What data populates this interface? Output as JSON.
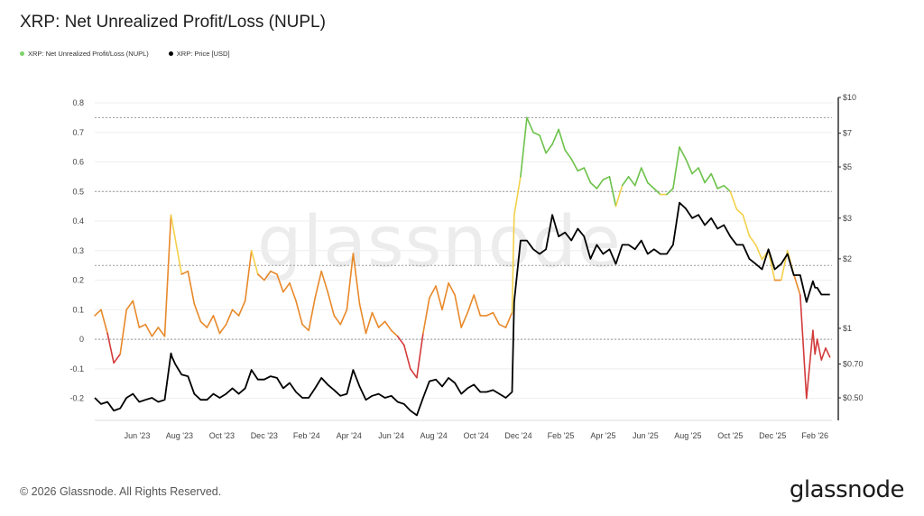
{
  "chart_data": {
    "type": "line",
    "title": "XRP: Net Unrealized Profit/Loss (NUPL)",
    "legend": [
      {
        "name": "XRP: Net Unrealized Profit/Loss (NUPL)",
        "color": "#7dd36a"
      },
      {
        "name": "XRP: Price [USD]",
        "color": "#000000"
      }
    ],
    "x_ticks": [
      "Jun '23",
      "Aug '23",
      "Oct '23",
      "Dec '23",
      "Feb '24",
      "Apr '24",
      "Jun '24",
      "Aug '24",
      "Oct '24",
      "Dec '24",
      "Feb '25",
      "Apr '25",
      "Jun '25",
      "Aug '25",
      "Oct '25",
      "Dec '25",
      "Feb '26"
    ],
    "x_tick_pos": [
      0.5,
      2.5,
      4.5,
      6.5,
      8.5,
      10.5,
      12.5,
      14.5,
      16.5,
      18.5,
      20.5,
      22.5,
      24.5,
      26.5,
      28.5,
      30.5,
      32.5
    ],
    "x_range": [
      -1.5,
      33.3
    ],
    "y_left_ticks": [
      "0.8",
      "0.7",
      "0.6",
      "0.5",
      "0.4",
      "0.3",
      "0.2",
      "0.1",
      "0",
      "-0.1",
      "-0.2"
    ],
    "y_left_range": [
      -0.25,
      0.8
    ],
    "y_right_ticks": [
      "$10",
      "$7",
      "$5",
      "$3",
      "$2",
      "$1",
      "$0.70",
      "$0.50"
    ],
    "y_right_values": [
      10,
      7,
      5,
      3,
      2,
      1,
      0.7,
      0.5
    ],
    "y_right_scale": "log",
    "dotted_levels": [
      0.75,
      0.5,
      0.25,
      0
    ],
    "nupl_color_bands": [
      {
        "min": -1,
        "max": 0,
        "color": "#d33b3b"
      },
      {
        "min": 0,
        "max": 0.25,
        "color": "#e8892a"
      },
      {
        "min": 0.25,
        "max": 0.5,
        "color": "#f2d14b"
      },
      {
        "min": 0.5,
        "max": 0.75,
        "color": "#6cc24a"
      },
      {
        "min": 0.75,
        "max": 1,
        "color": "#4a78c8"
      }
    ],
    "series": [
      {
        "name": "XRP: Net Unrealized Profit/Loss (NUPL)",
        "axis": "left",
        "x": [
          -1.5,
          -1.2,
          -0.9,
          -0.6,
          -0.3,
          0,
          0.3,
          0.6,
          0.9,
          1.2,
          1.5,
          1.8,
          2.1,
          2.15,
          2.3,
          2.6,
          2.9,
          3.2,
          3.5,
          3.8,
          4.1,
          4.4,
          4.7,
          5,
          5.3,
          5.6,
          5.9,
          6.2,
          6.5,
          6.8,
          7.1,
          7.4,
          7.7,
          8,
          8.3,
          8.6,
          8.9,
          9.2,
          9.5,
          9.8,
          10.1,
          10.4,
          10.7,
          11,
          11.3,
          11.6,
          11.9,
          12.2,
          12.5,
          12.8,
          13.1,
          13.4,
          13.7,
          14,
          14.3,
          14.6,
          14.9,
          15.2,
          15.5,
          15.8,
          16.1,
          16.4,
          16.7,
          17,
          17.3,
          17.6,
          17.9,
          18.2,
          18.3,
          18.6,
          18.9,
          19.2,
          19.5,
          19.8,
          20.1,
          20.4,
          20.7,
          21,
          21.3,
          21.6,
          21.9,
          22.2,
          22.5,
          22.8,
          23.1,
          23.4,
          23.7,
          24,
          24.3,
          24.6,
          24.9,
          25.2,
          25.5,
          25.8,
          26.1,
          26.4,
          26.7,
          27,
          27.3,
          27.6,
          27.9,
          28.2,
          28.5,
          28.8,
          29.1,
          29.4,
          29.7,
          30,
          30.3,
          30.6,
          30.9,
          31.2,
          31.5,
          31.8,
          32.1,
          32.4,
          32.5,
          32.6,
          32.8,
          33,
          33.2
        ],
        "values": [
          0.08,
          0.1,
          0.02,
          -0.08,
          -0.05,
          0.1,
          0.13,
          0.04,
          0.05,
          0.01,
          0.04,
          0.01,
          0.42,
          0.4,
          0.34,
          0.22,
          0.23,
          0.12,
          0.06,
          0.04,
          0.08,
          0.02,
          0.05,
          0.1,
          0.08,
          0.13,
          0.3,
          0.22,
          0.2,
          0.23,
          0.22,
          0.16,
          0.19,
          0.13,
          0.05,
          0.03,
          0.14,
          0.23,
          0.16,
          0.08,
          0.05,
          0.1,
          0.29,
          0.12,
          0.02,
          0.09,
          0.04,
          0.06,
          0.03,
          0.01,
          -0.02,
          -0.1,
          -0.13,
          0.02,
          0.14,
          0.18,
          0.1,
          0.19,
          0.15,
          0.04,
          0.09,
          0.15,
          0.08,
          0.08,
          0.09,
          0.05,
          0.04,
          0.09,
          0.42,
          0.55,
          0.75,
          0.7,
          0.69,
          0.63,
          0.66,
          0.71,
          0.64,
          0.61,
          0.57,
          0.58,
          0.53,
          0.51,
          0.54,
          0.55,
          0.45,
          0.52,
          0.55,
          0.52,
          0.58,
          0.53,
          0.51,
          0.49,
          0.49,
          0.51,
          0.65,
          0.61,
          0.56,
          0.58,
          0.53,
          0.56,
          0.51,
          0.52,
          0.5,
          0.44,
          0.42,
          0.35,
          0.32,
          0.27,
          0.3,
          0.2,
          0.2,
          0.3,
          0.22,
          0.15,
          -0.2,
          0.03,
          -0.05,
          0.0,
          -0.07,
          -0.03,
          -0.06
        ]
      },
      {
        "name": "XRP: Price [USD]",
        "axis": "right",
        "color": "#000000",
        "x": [
          -1.5,
          -1.2,
          -0.9,
          -0.6,
          -0.3,
          0,
          0.3,
          0.6,
          0.9,
          1.2,
          1.5,
          1.8,
          2.1,
          2.15,
          2.3,
          2.6,
          2.9,
          3.2,
          3.5,
          3.8,
          4.1,
          4.4,
          4.7,
          5,
          5.3,
          5.6,
          5.9,
          6.2,
          6.5,
          6.8,
          7.1,
          7.4,
          7.7,
          8,
          8.3,
          8.6,
          8.9,
          9.2,
          9.5,
          9.8,
          10.1,
          10.4,
          10.7,
          11,
          11.3,
          11.6,
          11.9,
          12.2,
          12.5,
          12.8,
          13.1,
          13.4,
          13.7,
          14,
          14.3,
          14.6,
          14.9,
          15.2,
          15.5,
          15.8,
          16.1,
          16.4,
          16.7,
          17,
          17.3,
          17.6,
          17.9,
          18.2,
          18.3,
          18.6,
          18.9,
          19.2,
          19.5,
          19.8,
          20.1,
          20.4,
          20.7,
          21,
          21.3,
          21.6,
          21.9,
          22.2,
          22.5,
          22.8,
          23.1,
          23.4,
          23.7,
          24,
          24.3,
          24.6,
          24.9,
          25.2,
          25.5,
          25.8,
          26.1,
          26.4,
          26.7,
          27,
          27.3,
          27.6,
          27.9,
          28.2,
          28.5,
          28.8,
          29.1,
          29.4,
          29.7,
          30,
          30.3,
          30.6,
          30.9,
          31.2,
          31.5,
          31.8,
          32.1,
          32.4,
          32.5,
          32.6,
          32.8,
          33,
          33.2
        ],
        "values": [
          0.5,
          0.47,
          0.48,
          0.44,
          0.45,
          0.5,
          0.52,
          0.48,
          0.49,
          0.5,
          0.48,
          0.49,
          0.78,
          0.75,
          0.7,
          0.63,
          0.62,
          0.52,
          0.49,
          0.49,
          0.52,
          0.5,
          0.52,
          0.55,
          0.52,
          0.55,
          0.66,
          0.6,
          0.6,
          0.62,
          0.61,
          0.55,
          0.58,
          0.53,
          0.5,
          0.5,
          0.55,
          0.61,
          0.57,
          0.54,
          0.51,
          0.52,
          0.66,
          0.56,
          0.49,
          0.51,
          0.52,
          0.5,
          0.51,
          0.48,
          0.47,
          0.44,
          0.42,
          0.5,
          0.59,
          0.6,
          0.56,
          0.61,
          0.58,
          0.52,
          0.55,
          0.57,
          0.53,
          0.53,
          0.54,
          0.52,
          0.5,
          0.53,
          1.3,
          2.4,
          2.4,
          2.2,
          2.1,
          2.2,
          3.1,
          2.5,
          2.6,
          2.4,
          2.7,
          2.5,
          2.0,
          2.3,
          2.1,
          2.2,
          1.9,
          2.3,
          2.3,
          2.2,
          2.4,
          2.1,
          2.2,
          2.1,
          2.1,
          2.3,
          3.5,
          3.3,
          3.0,
          3.1,
          2.8,
          3.0,
          2.7,
          2.8,
          2.5,
          2.3,
          2.3,
          2.0,
          1.9,
          1.8,
          2.2,
          1.8,
          1.9,
          2.1,
          1.7,
          1.7,
          1.3,
          1.6,
          1.5,
          1.5,
          1.4,
          1.4,
          1.4
        ]
      }
    ]
  },
  "watermark": "glassnode",
  "footer": {
    "copyright": "© 2026 Glassnode. All Rights Reserved.",
    "brand": "glassnode"
  }
}
